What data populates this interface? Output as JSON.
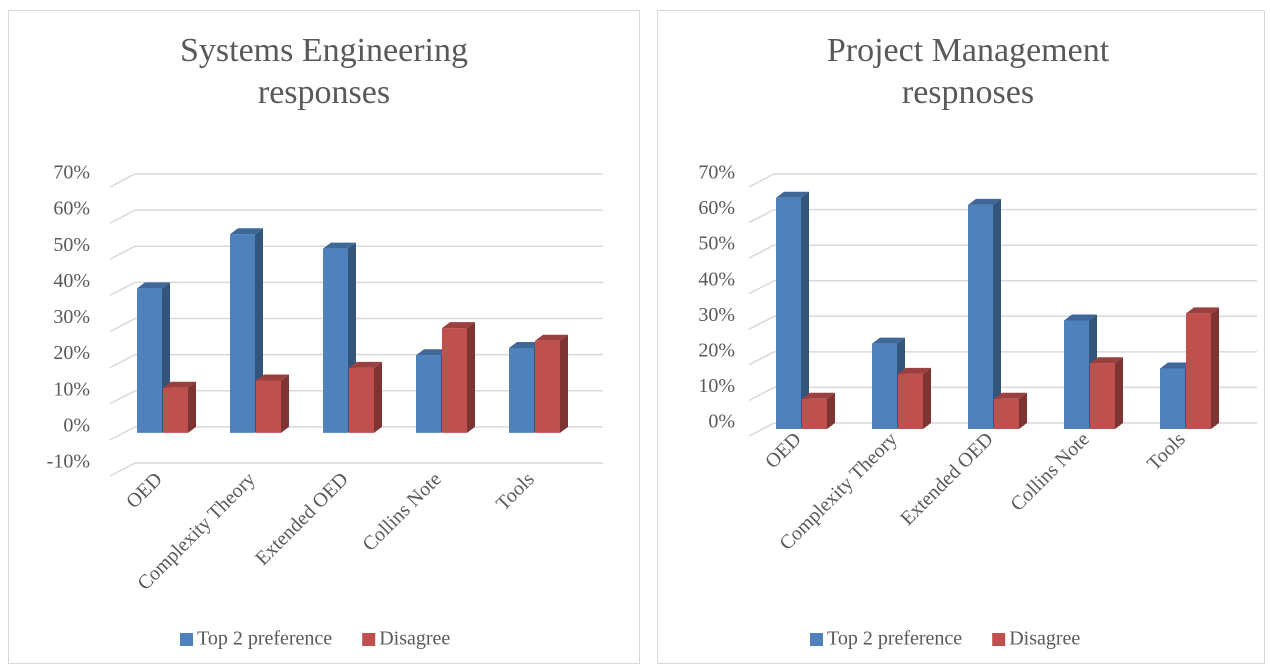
{
  "chart_data": [
    {
      "type": "bar3d",
      "title": "Systems Engineering responses",
      "categories": [
        "OED",
        "Complexity Theory",
        "Extended OED",
        "Collins Note",
        "Tools"
      ],
      "series": [
        {
          "name": "Top 2 preference",
          "color": "#4f81bd",
          "values": [
            40,
            55,
            51,
            21.5,
            23.5
          ]
        },
        {
          "name": "Disagree",
          "color": "#c0504d",
          "values": [
            12.5,
            14.5,
            18,
            29,
            25.5
          ]
        }
      ],
      "ylim": [
        -10,
        70
      ],
      "yticks": [
        {
          "value": -10,
          "label": "-10%"
        },
        {
          "value": 0,
          "label": "0%"
        },
        {
          "value": 10,
          "label": "10%"
        },
        {
          "value": 20,
          "label": "20%"
        },
        {
          "value": 30,
          "label": "30%"
        },
        {
          "value": 40,
          "label": "40%"
        },
        {
          "value": 50,
          "label": "50%"
        },
        {
          "value": 60,
          "label": "60%"
        },
        {
          "value": 70,
          "label": "70%"
        }
      ],
      "grid": true,
      "legend": "bottom"
    },
    {
      "type": "bar3d",
      "title": "Project Management respnoses",
      "categories": [
        "OED",
        "Complexity Theory",
        "Extended OED",
        "Collins Note",
        "Tools"
      ],
      "series": [
        {
          "name": "Top 2 preference",
          "color": "#4f81bd",
          "values": [
            65,
            24,
            63,
            30.5,
            17
          ]
        },
        {
          "name": "Disagree",
          "color": "#c0504d",
          "values": [
            8.5,
            15.5,
            8.5,
            18.5,
            32.5
          ]
        }
      ],
      "ylim": [
        0,
        70
      ],
      "yticks": [
        {
          "value": 0,
          "label": "0%"
        },
        {
          "value": 10,
          "label": "10%"
        },
        {
          "value": 20,
          "label": "20%"
        },
        {
          "value": 30,
          "label": "30%"
        },
        {
          "value": 40,
          "label": "40%"
        },
        {
          "value": 50,
          "label": "50%"
        },
        {
          "value": 60,
          "label": "60%"
        },
        {
          "value": 70,
          "label": "70%"
        }
      ],
      "grid": true,
      "legend": "bottom"
    }
  ]
}
